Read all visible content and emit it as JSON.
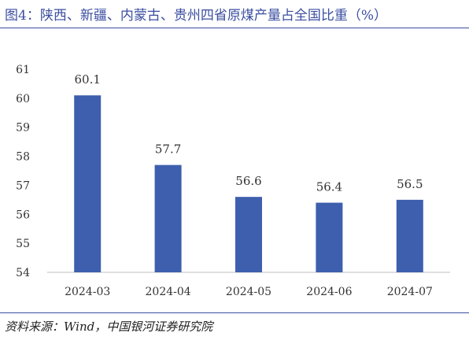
{
  "title": "图4：陕西、新疆、内蒙古、贵州四省原煤产量占全国比重（%）",
  "source": "资料来源：Wind，中国银河证券研究院",
  "colors": {
    "bar": "#3d5fad",
    "title": "#3b4ea0",
    "axis": "#bfbfbf"
  },
  "chart_data": {
    "type": "bar",
    "title": "图4：陕西、新疆、内蒙古、贵州四省原煤产量占全国比重（%）",
    "xlabel": "",
    "ylabel": "",
    "categories": [
      "2024-03",
      "2024-04",
      "2024-05",
      "2024-06",
      "2024-07"
    ],
    "values": [
      60.1,
      57.7,
      56.6,
      56.4,
      56.5
    ],
    "data_labels": [
      "60.1",
      "57.7",
      "56.6",
      "56.4",
      "56.5"
    ],
    "ylim": [
      54,
      61
    ],
    "yticks": [
      54,
      55,
      56,
      57,
      58,
      59,
      60,
      61
    ],
    "grid": false,
    "legend": "none"
  }
}
